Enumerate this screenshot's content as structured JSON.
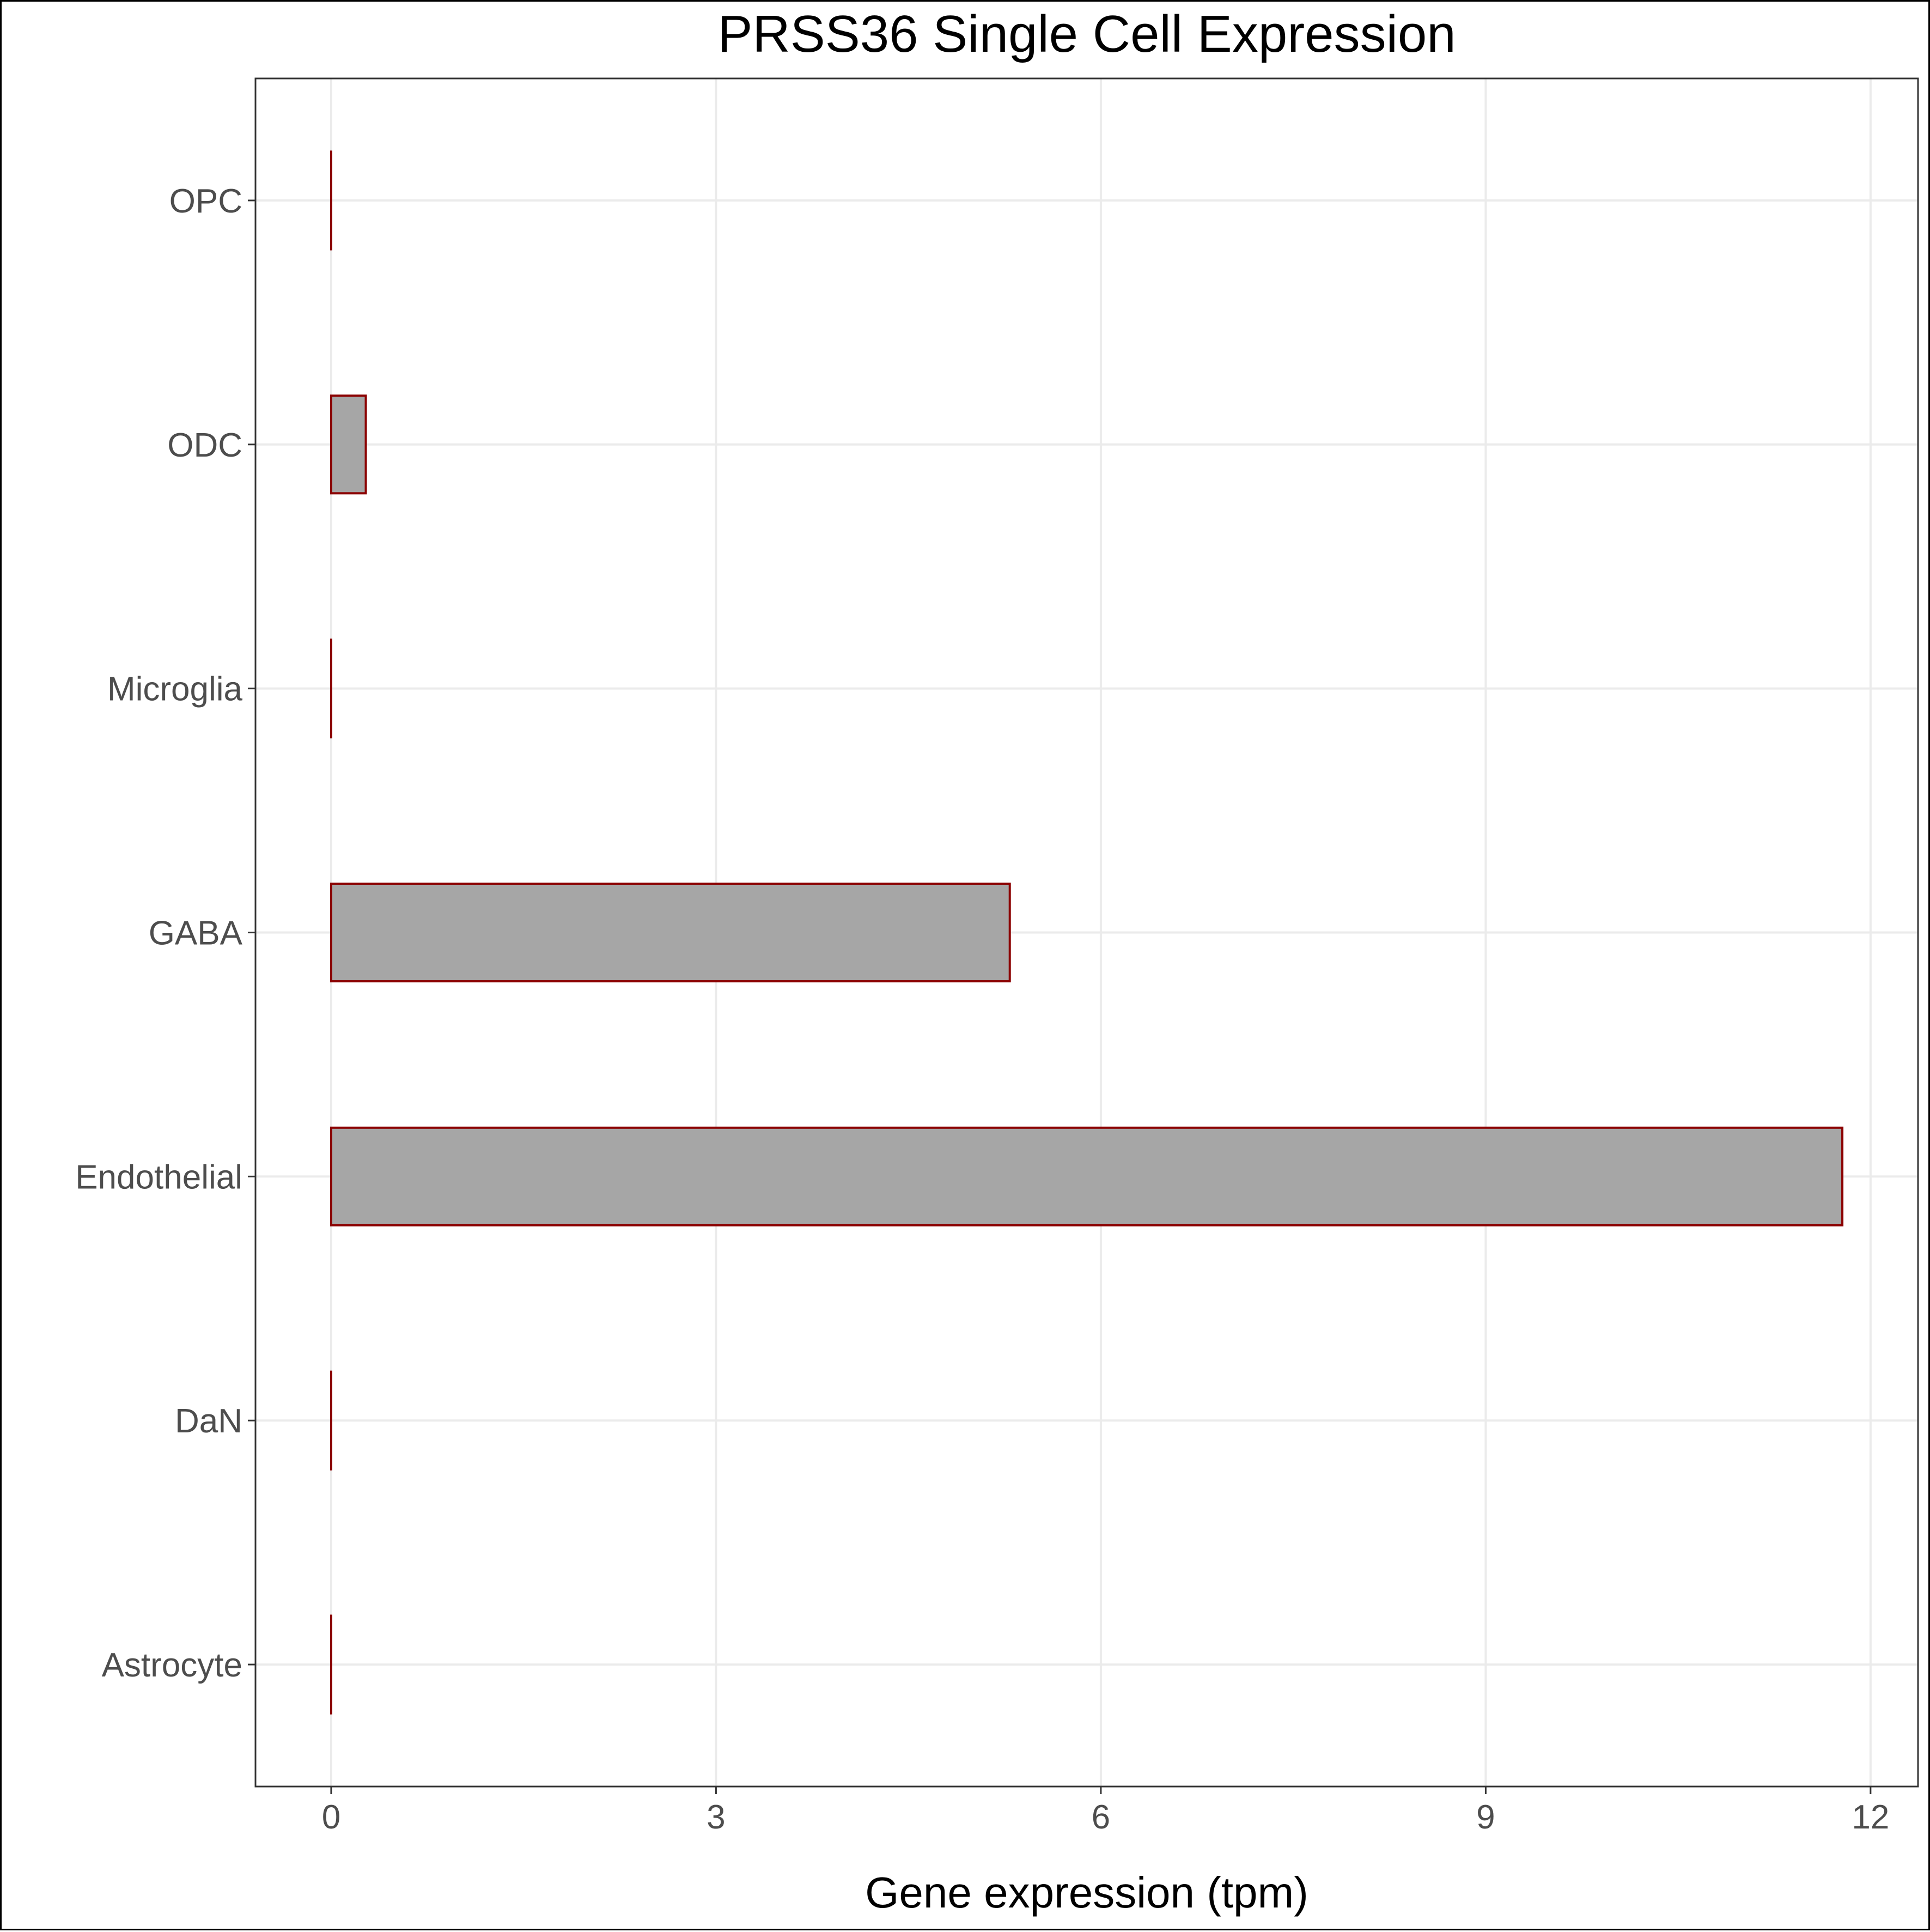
{
  "chart_data": {
    "type": "bar",
    "orientation": "horizontal",
    "title": "PRSS36 Single Cell Expression",
    "xlabel": "Gene expression (tpm)",
    "ylabel": "",
    "categories": [
      "Astrocyte",
      "DaN",
      "Endothelial",
      "GABA",
      "Microglia",
      "ODC",
      "OPC"
    ],
    "values": [
      0,
      0,
      11.78,
      5.29,
      0,
      0.27,
      0
    ],
    "xlim": [
      -0.59,
      12.37
    ],
    "xticks": [
      0,
      3,
      6,
      9,
      12
    ],
    "grid": true,
    "legend": "none",
    "colors": {
      "bar_fill": "#a6a6a6",
      "bar_stroke": "#8b0000",
      "grid": "#ebebeb",
      "panel_border": "#333333",
      "tick_text": "#4d4d4d"
    }
  }
}
